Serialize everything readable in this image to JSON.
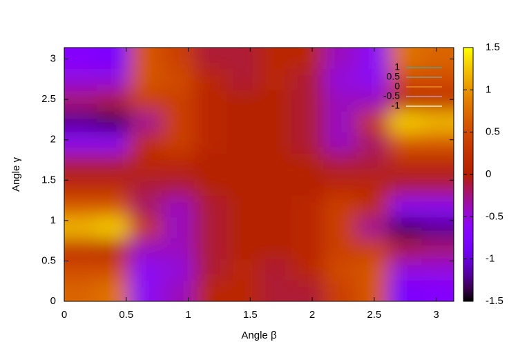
{
  "chart_data": {
    "type": "heatmap",
    "xlabel": "Angle β",
    "ylabel": "Angle γ",
    "xlim": [
      0,
      3.1416
    ],
    "ylim": [
      0,
      3.1416
    ],
    "xticks": [
      0,
      0.5,
      1,
      1.5,
      2,
      2.5,
      3
    ],
    "yticks": [
      0,
      0.5,
      1,
      1.5,
      2,
      2.5,
      3
    ],
    "x": [
      0.131,
      0.393,
      0.654,
      0.916,
      1.178,
      1.44,
      1.702,
      1.963,
      2.225,
      2.487,
      2.749,
      3.011
    ],
    "y": [
      0.131,
      0.393,
      0.654,
      0.916,
      1.178,
      1.44,
      1.702,
      1.963,
      2.225,
      2.487,
      2.749,
      3.011
    ],
    "z": [
      [
        0.7,
        0.8,
        -0.6,
        -0.4,
        0.1,
        0.1,
        -0.1,
        -0.1,
        0.4,
        0.6,
        -0.8,
        -0.7
      ],
      [
        0.5,
        0.5,
        -0.6,
        -0.5,
        -0.1,
        0.1,
        -0.1,
        0.1,
        0.5,
        0.6,
        -0.5,
        -0.5
      ],
      [
        0.2,
        0.1,
        -0.4,
        -0.4,
        -0.1,
        0,
        0,
        0.1,
        0.4,
        0.4,
        -0.1,
        -0.2
      ],
      [
        1.2,
        1.3,
        0.3,
        -0.4,
        -0.1,
        0,
        0,
        0.1,
        0.4,
        -0.3,
        -1.3,
        -1.2
      ],
      [
        0.6,
        0.6,
        -0.2,
        -0.4,
        -0.1,
        0,
        0,
        0.1,
        0.4,
        0.2,
        -0.6,
        -0.6
      ],
      [
        0.1,
        0.1,
        -0.1,
        -0.1,
        0,
        0,
        0,
        0,
        0.1,
        0.1,
        -0.1,
        -0.1
      ],
      [
        -0.1,
        -0.1,
        0.1,
        0.1,
        0,
        0,
        0,
        0,
        -0.1,
        -0.1,
        0.1,
        0.1
      ],
      [
        -0.6,
        -0.6,
        0.2,
        0.4,
        0.1,
        0,
        0,
        -0.1,
        -0.4,
        -0.2,
        0.6,
        0.6
      ],
      [
        -1.2,
        -1.3,
        -0.3,
        0.4,
        0.1,
        0,
        0,
        -0.1,
        -0.4,
        0.3,
        1.3,
        1.2
      ],
      [
        -0.2,
        -0.1,
        0.4,
        0.4,
        0.1,
        0,
        0,
        -0.1,
        -0.4,
        -0.4,
        0.1,
        0.2
      ],
      [
        -0.5,
        -0.5,
        0.6,
        0.5,
        0.1,
        -0.1,
        0.1,
        -0.1,
        -0.5,
        -0.6,
        0.5,
        0.5
      ],
      [
        -0.7,
        -0.8,
        0.6,
        0.4,
        -0.1,
        -0.1,
        0.1,
        0.1,
        -0.4,
        -0.6,
        0.8,
        0.7
      ]
    ],
    "cblim": [
      -1.5,
      1.5
    ],
    "cbticks": [
      -1.5,
      -1,
      -0.5,
      0,
      0.5,
      1,
      1.5
    ],
    "contours": [
      {
        "level": 1,
        "color": "#4aa6a0"
      },
      {
        "level": 0.5,
        "color": "#7fa8a0"
      },
      {
        "level": 0,
        "color": "#e89a1a"
      },
      {
        "level": -0.5,
        "color": "#c8a0e0"
      },
      {
        "level": -1,
        "color": "#ffffff"
      }
    ]
  }
}
